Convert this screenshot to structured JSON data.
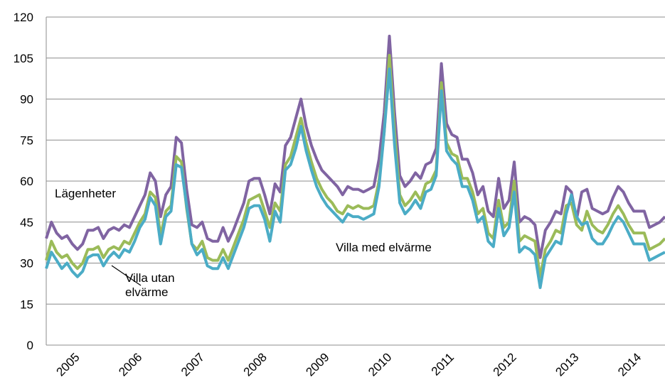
{
  "chart_data": {
    "type": "line",
    "categories": [
      null,
      null,
      null,
      null,
      null,
      null,
      "2005",
      null,
      null,
      null,
      null,
      null,
      null,
      null,
      null,
      null,
      null,
      null,
      "2006",
      null,
      null,
      null,
      null,
      null,
      null,
      null,
      null,
      null,
      null,
      null,
      "2007",
      null,
      null,
      null,
      null,
      null,
      null,
      null,
      null,
      null,
      null,
      null,
      "2008",
      null,
      null,
      null,
      null,
      null,
      null,
      null,
      null,
      null,
      null,
      null,
      "2009",
      null,
      null,
      null,
      null,
      null,
      null,
      null,
      null,
      null,
      null,
      null,
      "2010",
      null,
      null,
      null,
      null,
      null,
      null,
      null,
      null,
      null,
      null,
      null,
      "2011",
      null,
      null,
      null,
      null,
      null,
      null,
      null,
      null,
      null,
      null,
      null,
      "2012",
      null,
      null,
      null,
      null,
      null,
      null,
      null,
      null,
      null,
      null,
      null,
      "2013",
      null,
      null,
      null,
      null,
      null,
      null,
      null,
      null,
      null,
      null,
      null,
      "2014",
      null,
      null,
      null,
      null,
      null
    ],
    "series": [
      {
        "color": "#8064a2",
        "values": [
          39,
          45,
          41,
          39,
          40,
          37,
          35,
          37,
          42,
          42,
          43,
          39,
          42,
          43,
          42,
          44,
          43,
          47,
          51,
          55,
          63,
          60,
          47,
          55,
          58,
          76,
          74,
          57,
          44,
          43,
          45,
          39,
          38,
          38,
          43,
          38,
          42,
          47,
          52,
          60,
          61,
          61,
          55,
          48,
          59,
          56,
          73,
          76,
          83,
          90,
          80,
          73,
          68,
          64,
          62,
          60,
          58,
          55,
          58,
          57,
          57,
          56,
          57,
          58,
          68,
          85,
          113,
          85,
          62,
          58,
          60,
          63,
          61,
          66,
          67,
          72,
          103,
          81,
          77,
          76,
          68,
          68,
          63,
          55,
          58,
          49,
          47,
          61,
          50,
          53,
          67,
          45,
          47,
          46,
          44,
          32,
          42,
          45,
          49,
          48,
          58,
          56,
          46,
          56,
          57,
          50,
          49,
          48,
          49,
          54,
          58,
          56,
          52,
          49,
          49,
          49,
          43,
          44,
          45,
          47
        ]
      },
      {
        "color": "#9bbb59",
        "values": [
          31,
          38,
          34,
          32,
          33,
          30,
          28,
          30,
          35,
          35,
          36,
          32,
          35,
          36,
          35,
          38,
          37,
          41,
          45,
          48,
          56,
          54,
          40,
          49,
          51,
          69,
          67,
          50,
          37,
          35,
          38,
          32,
          31,
          31,
          35,
          31,
          36,
          41,
          46,
          53,
          54,
          55,
          49,
          43,
          52,
          49,
          66,
          69,
          76,
          83,
          74,
          67,
          61,
          57,
          54,
          52,
          49,
          48,
          51,
          50,
          51,
          50,
          50,
          51,
          60,
          78,
          106,
          78,
          55,
          51,
          53,
          56,
          53,
          59,
          60,
          64,
          96,
          74,
          70,
          69,
          61,
          61,
          56,
          48,
          50,
          41,
          39,
          53,
          43,
          45,
          60,
          38,
          40,
          39,
          38,
          25,
          35,
          38,
          42,
          41,
          51,
          52,
          44,
          42,
          49,
          44,
          42,
          41,
          44,
          48,
          51,
          48,
          44,
          41,
          41,
          41,
          35,
          36,
          37,
          39
        ]
      },
      {
        "color": "#4bacc6",
        "values": [
          28,
          34,
          31,
          28,
          30,
          27,
          25,
          27,
          32,
          33,
          33,
          29,
          32,
          34,
          32,
          35,
          34,
          38,
          43,
          46,
          54,
          51,
          37,
          47,
          49,
          66,
          65,
          51,
          37,
          33,
          35,
          29,
          28,
          28,
          32,
          28,
          33,
          38,
          43,
          50,
          51,
          51,
          46,
          38,
          49,
          45,
          64,
          66,
          72,
          80,
          71,
          64,
          58,
          54,
          51,
          49,
          47,
          45,
          48,
          47,
          47,
          46,
          47,
          48,
          58,
          78,
          101,
          73,
          52,
          48,
          50,
          53,
          50,
          56,
          57,
          62,
          93,
          71,
          68,
          66,
          58,
          58,
          53,
          45,
          47,
          38,
          36,
          50,
          40,
          43,
          56,
          34,
          36,
          35,
          33,
          21,
          32,
          35,
          38,
          37,
          48,
          55,
          47,
          44,
          45,
          39,
          37,
          37,
          40,
          44,
          47,
          45,
          41,
          37,
          37,
          37,
          31,
          32,
          33,
          34
        ]
      }
    ],
    "annotations": [
      {
        "lines": [
          "Lägenheter"
        ]
      },
      {
        "lines": [
          "Villa utan",
          "elvärme"
        ]
      },
      {
        "lines": [
          "Villa med elvärme"
        ]
      }
    ],
    "ylim": [
      0,
      120
    ],
    "yticks": [
      0,
      15,
      30,
      45,
      60,
      75,
      90,
      105,
      120
    ],
    "grid": true
  }
}
